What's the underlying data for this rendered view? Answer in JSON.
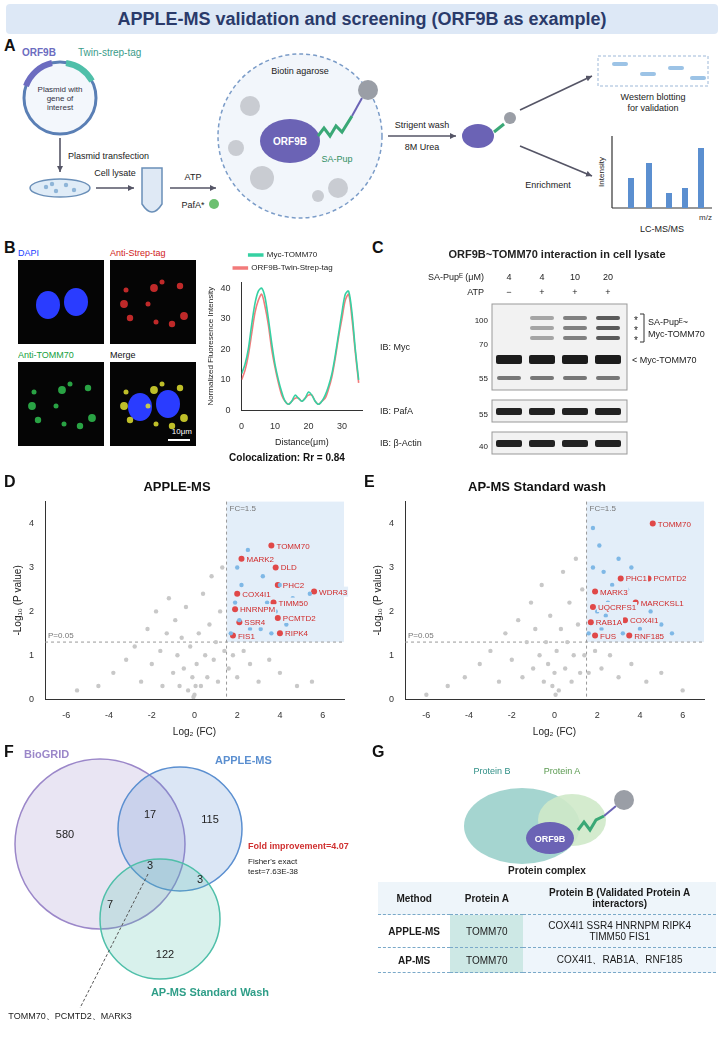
{
  "header": {
    "title": "APPLE-MS validation and screening (ORF9B as example)"
  },
  "panel_a": {
    "letter": "A",
    "plasmid_gene": "ORF9B",
    "plasmid_tag": "Twin-strep-tag",
    "plasmid_caption": "Plasmid with gene of interest",
    "step_transfection": "Plasmid transfection",
    "step_lysate": "Cell lysate",
    "step_atp": "ATP",
    "enzyme": "PafA*",
    "bait": "ORF9B",
    "bead": "Biotin agarose",
    "probe": "SA-Pup",
    "wash": "Strigent wash",
    "wash_buffer": "8M Urea",
    "western": "Western blotting for validation",
    "enrichment": "Enrichment",
    "ms": "LC-MS/MS",
    "ms_x": "m/z",
    "ms_y": "Intensity"
  },
  "panel_b": {
    "letter": "B",
    "images": [
      "DAPI",
      "Anti-Strep-tag",
      "Anti-TOMM70",
      "Merge"
    ],
    "scale_bar": "10μm",
    "colocalization": "Colocalization: Rr = 0.84"
  },
  "panel_c": {
    "letter": "C",
    "title": "ORF9B~TOMM70 interaction in cell lysate",
    "rows": [
      {
        "label": "SA-Pupᴱ (μM)",
        "lanes": [
          "4",
          "4",
          "10",
          "20"
        ]
      },
      {
        "label": "ATP",
        "lanes": [
          "−",
          "+",
          "+",
          "+"
        ]
      }
    ],
    "blots": [
      {
        "label": "IB: Myc",
        "markers": [
          100,
          70,
          55
        ]
      },
      {
        "label": "IB: PafA",
        "markers": [
          55
        ]
      },
      {
        "label": "IB: β-Actin",
        "markers": [
          40
        ]
      }
    ],
    "star": "*",
    "conjugate": "SA-Pupᴱ~ Myc-TOMM70",
    "monomer": "< Myc-TOMM70"
  },
  "chart_data": [
    {
      "panel": "B",
      "type": "line",
      "x_label": "Distance(μm)",
      "y_label": "Normalized Fluoresence Intensity",
      "x": [
        0,
        1,
        2,
        3,
        4,
        5,
        6,
        7,
        8,
        9,
        10,
        11,
        12,
        13,
        14,
        15,
        16,
        17,
        18,
        19,
        20,
        21,
        22,
        23,
        24,
        25,
        26,
        27,
        28,
        29,
        30,
        31,
        32,
        33,
        34,
        35
      ],
      "series": [
        {
          "name": "Myc-TOMM70",
          "color": "#36d1a3",
          "values": [
            12,
            15,
            20,
            28,
            35,
            39,
            40,
            37,
            30,
            22,
            15,
            10,
            6,
            3,
            2,
            3,
            5,
            4,
            3,
            4,
            6,
            5,
            3,
            2,
            3,
            5,
            8,
            12,
            18,
            25,
            32,
            38,
            39,
            32,
            20,
            10
          ]
        },
        {
          "name": "ORF9B-Twin-Strep-tag",
          "color": "#f27b7b",
          "values": [
            10,
            13,
            18,
            25,
            32,
            36,
            38,
            34,
            28,
            20,
            14,
            9,
            5,
            3,
            2,
            3,
            4,
            4,
            3,
            4,
            5,
            5,
            3,
            2,
            3,
            4,
            7,
            11,
            17,
            24,
            30,
            36,
            38,
            30,
            19,
            9
          ]
        }
      ],
      "xlim": [
        0,
        36
      ],
      "ylim": [
        0,
        42
      ],
      "xticks": [
        0,
        10,
        20,
        30
      ],
      "yticks": [
        0,
        10,
        20,
        30,
        40
      ],
      "legend": "top",
      "grid": false
    },
    {
      "panel": "D",
      "type": "scatter",
      "title": "APPLE-MS",
      "x_label": "Log₂ (FC)",
      "y_label": "-Log₁₀ (P value)",
      "xlim": [
        -7,
        7
      ],
      "ylim": [
        0,
        4.5
      ],
      "xticks": [
        -6,
        -4,
        -2,
        0,
        2,
        4,
        6
      ],
      "yticks": [
        0,
        1,
        2,
        3,
        4
      ],
      "grid": false,
      "thresholds": [
        {
          "axis": "x",
          "value": 1.5,
          "label": "FC=1.5"
        },
        {
          "axis": "y",
          "value": 1.301,
          "label": "P=0.05"
        }
      ],
      "series": [
        {
          "color": "#c8c8c8",
          "x": [
            -5.5,
            -4.5,
            -3.8,
            -3.2,
            -2.8,
            -2.5,
            -2.2,
            -2.0,
            -1.8,
            -1.6,
            -1.5,
            -1.3,
            -1.2,
            -1.0,
            -0.9,
            -0.8,
            -0.7,
            -0.6,
            -0.5,
            -0.4,
            -0.3,
            -0.2,
            -0.1,
            -0.05,
            0,
            0.05,
            0.1,
            0.2,
            0.3,
            0.4,
            0.5,
            0.6,
            0.7,
            0.8,
            0.9,
            1.0,
            1.1,
            1.2,
            1.3,
            1.4,
            1.6,
            1.8,
            2.0,
            2.3,
            2.6,
            3.0,
            3.5,
            4.0,
            4.8,
            5.5
          ],
          "values": [
            0.2,
            0.3,
            0.6,
            0.9,
            1.2,
            0.4,
            1.6,
            0.8,
            2.0,
            1.1,
            0.3,
            1.5,
            2.3,
            0.6,
            1.8,
            1.0,
            0.3,
            1.4,
            0.7,
            2.1,
            0.2,
            1.2,
            0.5,
            0.05,
            0.1,
            0.3,
            0.8,
            1.5,
            0.3,
            2.4,
            1.0,
            0.5,
            1.7,
            2.8,
            0.9,
            1.3,
            0.4,
            2.0,
            3.0,
            1.1,
            0.7,
            1.0,
            0.5,
            1.1,
            0.8,
            0.4,
            0.9,
            0.6,
            0.3,
            0.4
          ]
        },
        {
          "color": "#7fb8e6",
          "x": [
            1.7,
            1.9,
            2.1,
            2.2,
            2.4,
            2.5,
            2.7,
            2.9,
            3.1,
            3.2,
            3.4,
            3.6,
            3.8,
            4.0,
            4.3,
            4.6,
            5.0,
            5.4,
            2.0,
            2.6
          ],
          "values": [
            1.5,
            2.2,
            1.8,
            2.6,
            1.4,
            3.4,
            2.0,
            2.4,
            1.6,
            2.8,
            2.2,
            1.5,
            2.0,
            2.6,
            1.7,
            2.3,
            1.9,
            2.4,
            3.0,
            1.6
          ]
        },
        {
          "color": "#e04848",
          "x": [
            2.2,
            2.0,
            1.9,
            2.1,
            1.8,
            3.6,
            3.8,
            3.9,
            3.7,
            3.9,
            4.0,
            5.6
          ],
          "values": [
            3.2,
            2.4,
            2.05,
            1.75,
            1.45,
            3.5,
            3.0,
            2.6,
            2.2,
            1.85,
            1.5,
            2.45
          ],
          "point_labels": [
            "MARK2",
            "COX4I1",
            "HNRNPM",
            "SSR4",
            "FIS1",
            "TOMM70",
            "DLD",
            "PHC2",
            "TIMM50",
            "PCMTD2",
            "RIPK4",
            "WDR43"
          ]
        }
      ]
    },
    {
      "panel": "E",
      "type": "scatter",
      "title": "AP-MS Standard wash",
      "x_label": "Log₂ (FC)",
      "y_label": "-Log₁₀ (P value)",
      "xlim": [
        -7,
        7
      ],
      "ylim": [
        0,
        4.5
      ],
      "xticks": [
        -6,
        -4,
        -2,
        0,
        2,
        4,
        6
      ],
      "yticks": [
        0,
        1,
        2,
        3,
        4
      ],
      "grid": false,
      "thresholds": [
        {
          "axis": "x",
          "value": 1.5,
          "label": "FC=1.5"
        },
        {
          "axis": "y",
          "value": 1.301,
          "label": "P=0.05"
        }
      ],
      "series": [
        {
          "color": "#c8c8c8",
          "x": [
            -6.0,
            -5.0,
            -4.2,
            -3.5,
            -3.0,
            -2.6,
            -2.3,
            -2.0,
            -1.7,
            -1.5,
            -1.3,
            -1.1,
            -1.0,
            -0.9,
            -0.7,
            -0.6,
            -0.5,
            -0.4,
            -0.3,
            -0.2,
            -0.1,
            0,
            0.05,
            0.1,
            0.2,
            0.3,
            0.4,
            0.5,
            0.6,
            0.7,
            0.8,
            0.9,
            1.0,
            1.1,
            1.2,
            1.3,
            1.4,
            1.6,
            1.9,
            2.2,
            2.6,
            3.0,
            3.6,
            4.3,
            5.0,
            6.0
          ],
          "values": [
            0.1,
            0.3,
            0.5,
            0.8,
            1.1,
            0.4,
            1.5,
            0.9,
            1.8,
            0.5,
            1.3,
            2.2,
            0.7,
            1.6,
            1.0,
            2.6,
            0.4,
            1.3,
            0.8,
            1.9,
            0.3,
            0.6,
            0.1,
            1.1,
            0.2,
            1.6,
            2.9,
            0.7,
            1.3,
            2.2,
            0.4,
            1.0,
            3.2,
            1.7,
            0.6,
            2.5,
            1.0,
            0.6,
            1.1,
            0.7,
            1.0,
            0.5,
            0.8,
            0.4,
            0.6,
            0.2
          ]
        },
        {
          "color": "#7fb8e6",
          "x": [
            1.6,
            1.8,
            2.0,
            2.2,
            2.3,
            2.5,
            2.6,
            2.8,
            3.0,
            3.2,
            3.4,
            2.7,
            2.1,
            1.8,
            4.0,
            4.5,
            5.0,
            5.5,
            2.4,
            3.6
          ],
          "values": [
            1.5,
            3.0,
            2.0,
            1.6,
            2.9,
            2.2,
            1.4,
            1.8,
            3.2,
            1.5,
            2.5,
            2.6,
            3.5,
            3.9,
            1.6,
            2.0,
            1.7,
            1.5,
            1.9,
            3.0
          ]
        },
        {
          "color": "#e04848",
          "x": [
            4.6,
            1.9,
            1.8,
            1.7,
            1.9,
            3.1,
            4.4,
            3.8,
            3.3,
            3.5
          ],
          "values": [
            4.0,
            2.45,
            2.1,
            1.75,
            1.45,
            2.75,
            2.75,
            2.2,
            1.8,
            1.45
          ],
          "point_labels": [
            "TOMM70",
            "MARK3",
            "UQCRFS1",
            "RAB1A",
            "FUS",
            "PHC1",
            "PCMTD2",
            "MARCKSL1",
            "COX4I1",
            "RNF185"
          ]
        }
      ]
    }
  ],
  "panel_f": {
    "letter": "F",
    "sets": [
      {
        "name": "BioGRID",
        "color": "#9b87c9"
      },
      {
        "name": "APPLE-MS",
        "color": "#5b8fd0"
      },
      {
        "name": "AP-MS Standard Wash",
        "color": "#4fbfa9"
      }
    ],
    "regions": {
      "biogrid_only": 580,
      "apple_only": 115,
      "ap_only": 122,
      "biogrid_apple": 17,
      "biogrid_ap": 7,
      "apple_ap": 3,
      "all": 3
    },
    "fold_improvement": "Fold improvement=4.07",
    "fisher": "Fisher's exact test=7.63E-38",
    "shared": "TOMM70、PCMTD2、MARK3"
  },
  "panel_g": {
    "letter": "G",
    "protein_b": "Protein B",
    "protein_a": "Protein A",
    "bait": "ORF9B",
    "complex": "Protein complex",
    "table": {
      "header": [
        "Method",
        "Protein A",
        "Protein B (Validated Protein A interactors)"
      ],
      "rows": [
        [
          "APPLE-MS",
          "TOMM70",
          "COX4I1 SSR4 HNRNPM RIPK4 TIMM50 FIS1"
        ],
        [
          "AP-MS",
          "TOMM70",
          "COX4I1、RAB1A、RNF185"
        ]
      ]
    }
  }
}
